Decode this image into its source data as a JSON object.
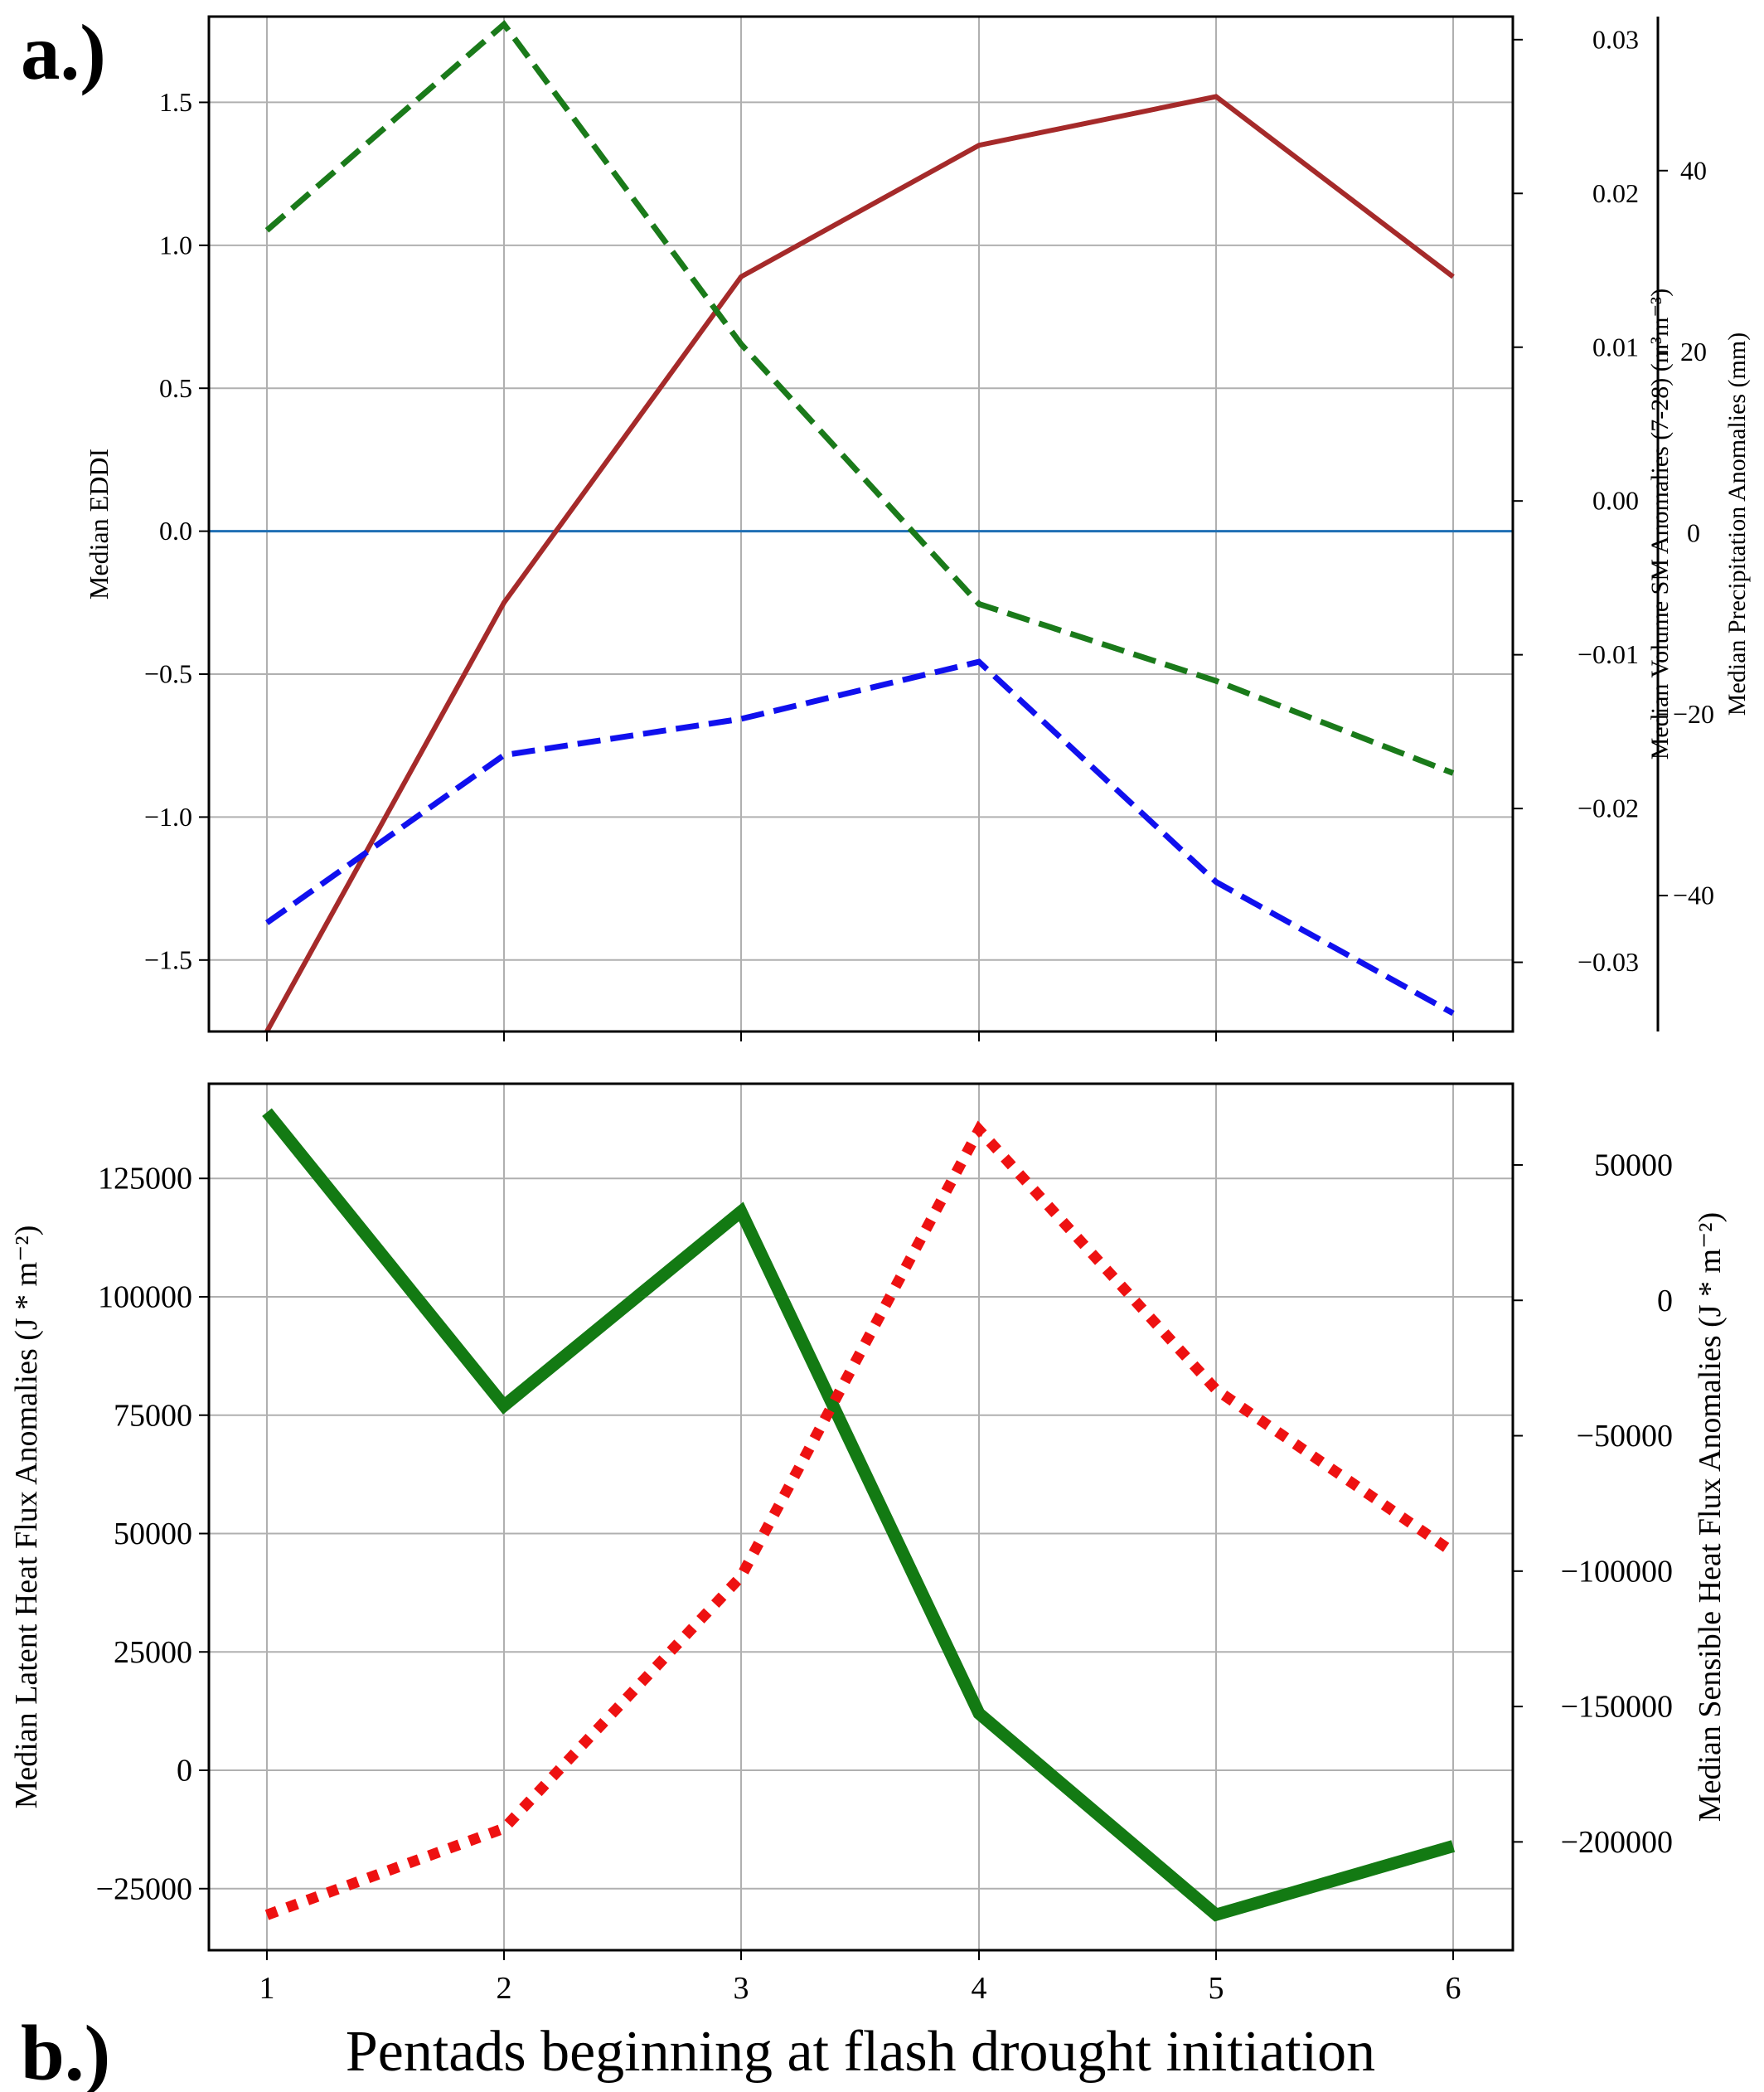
{
  "figure": {
    "label_a": "a.)",
    "label_b": "b.)",
    "xlabel": "Pentads beginning at flash drought initiation"
  },
  "chart_data": [
    {
      "type": "line",
      "panel": "a",
      "x": [
        1,
        2,
        3,
        4,
        5,
        6
      ],
      "xticks": [
        "1",
        "2",
        "3",
        "4",
        "5",
        "6"
      ],
      "grid": true,
      "axes": {
        "left": {
          "label": "Median EDDI",
          "ylim": [
            -1.75,
            1.8
          ],
          "ticks": [
            -1.5,
            -1.0,
            -0.5,
            0.0,
            0.5,
            1.0,
            1.5
          ],
          "tick_labels": [
            "−1.5",
            "−1.0",
            "−0.5",
            "0.0",
            "0.5",
            "1.0",
            "1.5"
          ]
        },
        "right1": {
          "label": "Median Volume SM Anomalies (7-28) (m³m⁻³)",
          "ylim": [
            -0.0345,
            0.0315
          ],
          "ticks": [
            -0.03,
            -0.02,
            -0.01,
            0.0,
            0.01,
            0.02,
            0.03
          ],
          "tick_labels": [
            "−0.03",
            "−0.02",
            "−0.01",
            "0.00",
            "0.01",
            "0.02",
            "0.03"
          ]
        },
        "right2": {
          "label": "Median Precipitation Anomalies (mm)",
          "ylim": [
            -55,
            57
          ],
          "ticks": [
            -40,
            -20,
            0,
            20,
            40
          ],
          "tick_labels": [
            "−40",
            "−20",
            "0",
            "20",
            "40"
          ]
        }
      },
      "series": [
        {
          "axis": "left",
          "values": [
            -1.75,
            -0.25,
            0.89,
            1.35,
            1.52,
            0.89
          ],
          "color": "#a52a2a",
          "style": "solid"
        },
        {
          "axis": "right1",
          "values": [
            0.0176,
            0.031,
            0.0102,
            -0.0067,
            -0.0117,
            -0.0177
          ],
          "color": "#1a7a1a",
          "style": "dashed"
        },
        {
          "axis": "right2",
          "values": [
            -43,
            -24.5,
            -20.5,
            -14.2,
            -38.5,
            -53
          ],
          "color": "#1010ee",
          "style": "dashed"
        }
      ],
      "zero_line": {
        "value": 0.0,
        "color": "#1f6fb4"
      }
    },
    {
      "type": "line",
      "panel": "b",
      "x": [
        1,
        2,
        3,
        4,
        5,
        6
      ],
      "xticks": [
        "1",
        "2",
        "3",
        "4",
        "5",
        "6"
      ],
      "grid": true,
      "axes": {
        "left": {
          "label": "Median Latent Heat Flux Anomalies (J * m⁻²)",
          "ylim": [
            -38000,
            145000
          ],
          "ticks": [
            -25000,
            0,
            25000,
            50000,
            75000,
            100000,
            125000
          ],
          "tick_labels": [
            "−25000",
            "0",
            "25000",
            "50000",
            "75000",
            "100000",
            "125000"
          ]
        },
        "right": {
          "label": "Median Sensible Heat Flux Anomalies (J * m⁻²)",
          "ylim": [
            -240000,
            80000
          ],
          "ticks": [
            -200000,
            -150000,
            -100000,
            -50000,
            0,
            50000
          ],
          "tick_labels": [
            "−200000",
            "−150000",
            "−100000",
            "−50000",
            "0",
            "50000"
          ]
        }
      },
      "series": [
        {
          "axis": "left",
          "values": [
            139000,
            77000,
            118000,
            12000,
            -30500,
            -16000
          ],
          "color": "#137a13",
          "style": "solid"
        },
        {
          "axis": "right",
          "values": [
            -227000,
            -195000,
            -102000,
            63000,
            -33000,
            -93000
          ],
          "color": "#ee1111",
          "style": "dotted"
        }
      ]
    }
  ]
}
